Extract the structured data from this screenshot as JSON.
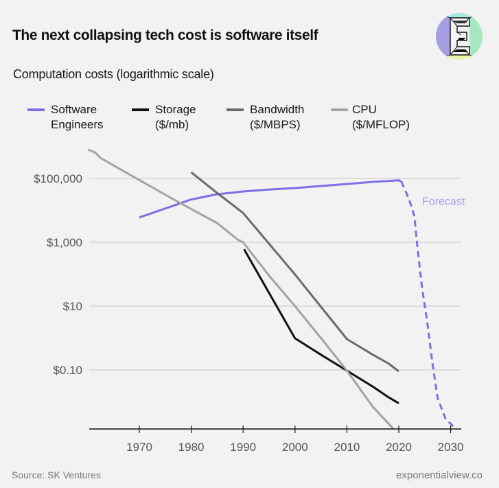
{
  "title": "The next collapsing tech cost is software itself",
  "subtitle": "Computation costs (logarithmic scale)",
  "logo": {
    "icon": "exponential-view-e-logo",
    "colors": [
      "#a59ee0",
      "#a8e6e0",
      "#a6e8bf",
      "#e6f5a5"
    ]
  },
  "footer": {
    "source": "Source: SK Ventures",
    "site": "exponentialview.co"
  },
  "chart_data": {
    "type": "line",
    "title": "The next collapsing tech cost is software itself",
    "subtitle": "Computation costs (logarithmic scale)",
    "xlabel": "",
    "ylabel": "",
    "y_scale": "log",
    "xlim": [
      1960,
      2032
    ],
    "ylim": [
      0.001,
      1000000
    ],
    "grid": true,
    "legend_position": "top",
    "x_ticks": [
      1970,
      1980,
      1990,
      2000,
      2010,
      2020,
      2030
    ],
    "x_tick_labels": [
      "1970",
      "1980",
      "1990",
      "2000",
      "2010",
      "2020",
      "2030"
    ],
    "y_ticks": [
      100000,
      1000,
      10,
      0.1
    ],
    "y_tick_labels": [
      "$100,000",
      "$1,000",
      "$10",
      "$0.10"
    ],
    "annotations": [
      {
        "text": "Forecast",
        "x": 2024.5,
        "y": 22000,
        "color": "#a59ee8"
      }
    ],
    "series": [
      {
        "name": "Software Engineers",
        "legend_label": "Software\nEngineers",
        "color": "#7b70e3",
        "style": "solid",
        "points": [
          [
            1970,
            6000
          ],
          [
            1976,
            13000
          ],
          [
            1980,
            22000
          ],
          [
            1985,
            32000
          ],
          [
            1990,
            39000
          ],
          [
            1995,
            45000
          ],
          [
            2000,
            50000
          ],
          [
            2005,
            58000
          ],
          [
            2010,
            67000
          ],
          [
            2015,
            78000
          ],
          [
            2020,
            87000
          ],
          [
            2020.5,
            80000
          ]
        ]
      },
      {
        "name": "Software Engineers (Forecast)",
        "legend_label": "",
        "color": "#7b70e3",
        "style": "dashed",
        "points": [
          [
            2020.5,
            80000
          ],
          [
            2022,
            22000
          ],
          [
            2023,
            6600
          ],
          [
            2023.6,
            700
          ],
          [
            2024.5,
            36
          ],
          [
            2025.5,
            3
          ],
          [
            2026.5,
            0.16
          ],
          [
            2027.5,
            0.013
          ],
          [
            2029,
            0.003
          ],
          [
            2031,
            0.0014
          ]
        ]
      },
      {
        "name": "Storage ($/mb)",
        "legend_label": "Storage\n($/mb)",
        "color": "#111111",
        "style": "solid",
        "points": [
          [
            1990.2,
            600
          ],
          [
            2000,
            0.98
          ],
          [
            2005,
            0.3
          ],
          [
            2010,
            0.095
          ],
          [
            2015,
            0.03
          ],
          [
            2018,
            0.014
          ],
          [
            2020,
            0.009
          ]
        ]
      },
      {
        "name": "Bandwidth ($/MBPS)",
        "legend_label": "Bandwidth\n($/MBPS)",
        "color": "#6b6b6b",
        "style": "solid",
        "points": [
          [
            1980,
            155000
          ],
          [
            1985,
            35000
          ],
          [
            1990,
            8300
          ],
          [
            1995,
            900
          ],
          [
            2000,
            98
          ],
          [
            2005,
            9.5
          ],
          [
            2010,
            0.93
          ],
          [
            2015,
            0.3
          ],
          [
            2018,
            0.16
          ],
          [
            2020,
            0.09
          ]
        ]
      },
      {
        "name": "CPU ($/MFLOP)",
        "legend_label": "CPU\n($/MFLOP)",
        "color": "#a3a3a3",
        "style": "solid",
        "points": [
          [
            1960.1,
            800000
          ],
          [
            1961.5,
            650000
          ],
          [
            1962.5,
            440000
          ],
          [
            1969,
            110000
          ],
          [
            1971.5,
            65000
          ],
          [
            1976,
            25000
          ],
          [
            1980,
            11000
          ],
          [
            1985,
            4000
          ],
          [
            1989,
            1200
          ],
          [
            1990,
            1000
          ],
          [
            1995,
            90
          ],
          [
            2000,
            10
          ],
          [
            2005,
            1
          ],
          [
            2010,
            0.095
          ],
          [
            2015,
            0.007
          ],
          [
            2019,
            0.0014
          ]
        ]
      }
    ]
  }
}
